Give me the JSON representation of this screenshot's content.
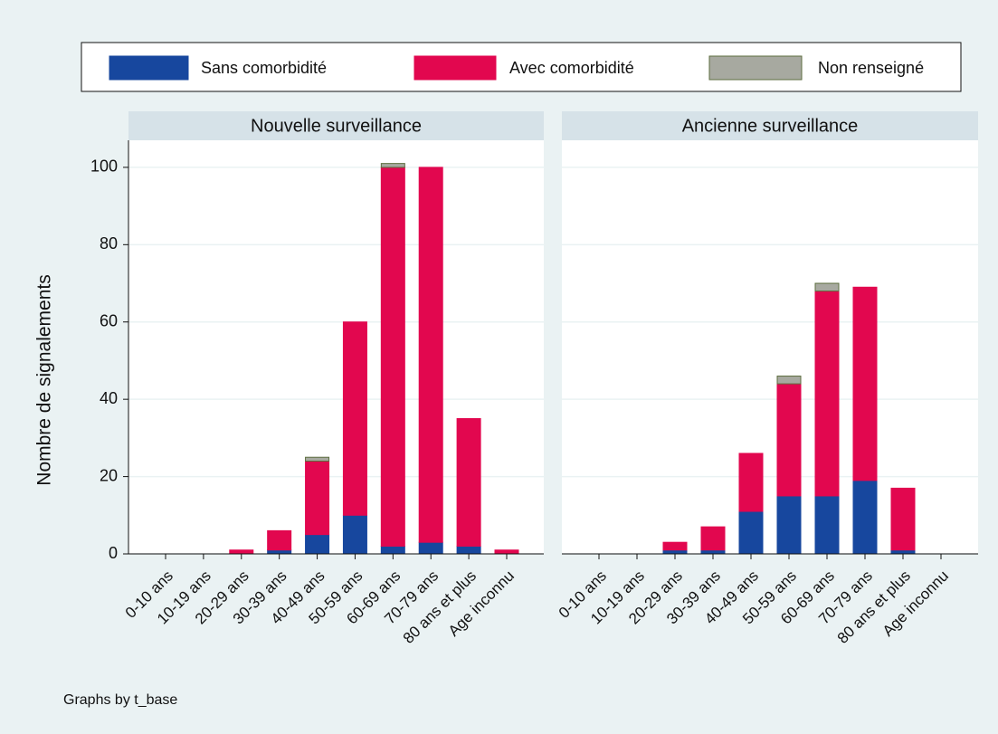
{
  "chart_data": [
    {
      "type": "bar",
      "stacked": true,
      "title": "Nouvelle surveillance",
      "ylabel": "Nombre de signalements",
      "note": "Graphs by t_base",
      "categories": [
        "0-10 ans",
        "10-19 ans",
        "20-29 ans",
        "30-39 ans",
        "40-49 ans",
        "50-59 ans",
        "60-69 ans",
        "70-79 ans",
        "80 ans et plus",
        "Age inconnu"
      ],
      "series": [
        {
          "name": "Sans comorbidité",
          "color": "#17479e",
          "values": [
            0,
            0,
            0,
            1,
            5,
            10,
            2,
            3,
            2,
            0
          ]
        },
        {
          "name": "Avec comorbidité",
          "color": "#e2074f",
          "values": [
            0,
            0,
            1,
            5,
            19,
            50,
            98,
            97,
            33,
            1
          ]
        },
        {
          "name": "Non renseigné",
          "color": "#a7a9a0",
          "values": [
            0,
            0,
            0,
            0,
            1,
            0,
            1,
            0,
            0,
            0
          ]
        }
      ],
      "ylim": [
        0,
        107
      ],
      "yticks": [
        0,
        20,
        40,
        60,
        80,
        100
      ],
      "grid": true
    },
    {
      "type": "bar",
      "stacked": true,
      "title": "Ancienne surveillance",
      "categories": [
        "0-10 ans",
        "10-19 ans",
        "20-29 ans",
        "30-39 ans",
        "40-49 ans",
        "50-59 ans",
        "60-69 ans",
        "70-79 ans",
        "80 ans et plus",
        "Age inconnu"
      ],
      "series": [
        {
          "name": "Sans comorbidité",
          "color": "#17479e",
          "values": [
            0,
            0,
            1,
            1,
            11,
            15,
            15,
            19,
            1,
            0
          ]
        },
        {
          "name": "Avec comorbidité",
          "color": "#e2074f",
          "values": [
            0,
            0,
            2,
            6,
            15,
            29,
            53,
            50,
            16,
            0
          ]
        },
        {
          "name": "Non renseigné",
          "color": "#a7a9a0",
          "values": [
            0,
            0,
            0,
            0,
            0,
            2,
            2,
            0,
            0,
            0
          ]
        }
      ],
      "ylim": [
        0,
        107
      ],
      "yticks": [
        0,
        20,
        40,
        60,
        80,
        100
      ],
      "grid": true
    }
  ]
}
